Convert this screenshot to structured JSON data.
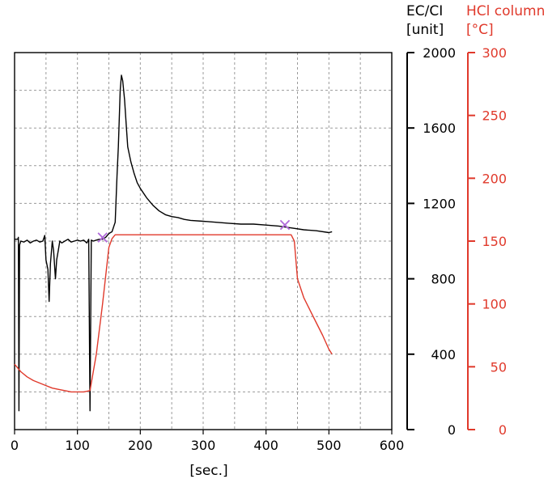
{
  "chart_data": {
    "type": "line",
    "xlabel": "[sec.]",
    "xlim": [
      0,
      600
    ],
    "x_ticks": [
      "0",
      "100",
      "200",
      "300",
      "400",
      "500",
      "600"
    ],
    "y_left": {
      "label_line1": "EC/CI",
      "label_line2": "[unit]",
      "lim": [
        0,
        2000
      ],
      "ticks": [
        "0",
        "400",
        "800",
        "1200",
        "1600",
        "2000"
      ],
      "color": "#000000"
    },
    "y_right": {
      "label_line1": "HCl column",
      "label_line2": "[°C]",
      "lim": [
        0,
        300
      ],
      "ticks": [
        "0",
        "50",
        "100",
        "150",
        "200",
        "250",
        "300"
      ],
      "color": "#e0392b"
    },
    "grid": true,
    "series": [
      {
        "axis": "left",
        "color": "#000000",
        "points": [
          [
            0,
            1010
          ],
          [
            5,
            1010
          ],
          [
            6,
            1020
          ],
          [
            7,
            100
          ],
          [
            8,
            980
          ],
          [
            10,
            1000
          ],
          [
            15,
            995
          ],
          [
            20,
            1005
          ],
          [
            25,
            990
          ],
          [
            30,
            1000
          ],
          [
            35,
            1005
          ],
          [
            40,
            995
          ],
          [
            45,
            1000
          ],
          [
            48,
            1030
          ],
          [
            50,
            900
          ],
          [
            53,
            850
          ],
          [
            55,
            680
          ],
          [
            57,
            880
          ],
          [
            60,
            1000
          ],
          [
            62,
            950
          ],
          [
            65,
            800
          ],
          [
            67,
            900
          ],
          [
            70,
            960
          ],
          [
            72,
            1000
          ],
          [
            75,
            990
          ],
          [
            80,
            1000
          ],
          [
            85,
            1010
          ],
          [
            90,
            995
          ],
          [
            95,
            1000
          ],
          [
            100,
            1005
          ],
          [
            105,
            1000
          ],
          [
            110,
            1005
          ],
          [
            115,
            990
          ],
          [
            118,
            1010
          ],
          [
            120,
            100
          ],
          [
            122,
            1005
          ],
          [
            125,
            1000
          ],
          [
            130,
            1005
          ],
          [
            135,
            1010
          ],
          [
            140,
            1010
          ],
          [
            145,
            1020
          ],
          [
            150,
            1040
          ],
          [
            155,
            1050
          ],
          [
            160,
            1100
          ],
          [
            163,
            1350
          ],
          [
            165,
            1500
          ],
          [
            168,
            1800
          ],
          [
            170,
            1880
          ],
          [
            172,
            1850
          ],
          [
            175,
            1750
          ],
          [
            178,
            1600
          ],
          [
            180,
            1500
          ],
          [
            185,
            1420
          ],
          [
            190,
            1360
          ],
          [
            195,
            1310
          ],
          [
            200,
            1280
          ],
          [
            210,
            1230
          ],
          [
            220,
            1190
          ],
          [
            230,
            1160
          ],
          [
            240,
            1140
          ],
          [
            250,
            1130
          ],
          [
            260,
            1125
          ],
          [
            270,
            1115
          ],
          [
            280,
            1110
          ],
          [
            300,
            1105
          ],
          [
            320,
            1100
          ],
          [
            340,
            1095
          ],
          [
            360,
            1090
          ],
          [
            380,
            1090
          ],
          [
            400,
            1085
          ],
          [
            420,
            1080
          ],
          [
            440,
            1070
          ],
          [
            460,
            1060
          ],
          [
            480,
            1055
          ],
          [
            500,
            1045
          ],
          [
            505,
            1050
          ]
        ]
      },
      {
        "axis": "right",
        "color": "#e0392b",
        "points": [
          [
            0,
            52
          ],
          [
            10,
            46
          ],
          [
            20,
            42
          ],
          [
            30,
            39
          ],
          [
            40,
            37
          ],
          [
            50,
            35
          ],
          [
            60,
            33
          ],
          [
            70,
            32
          ],
          [
            80,
            31
          ],
          [
            90,
            30
          ],
          [
            100,
            30
          ],
          [
            110,
            30
          ],
          [
            120,
            31
          ],
          [
            130,
            60
          ],
          [
            140,
            100
          ],
          [
            150,
            145
          ],
          [
            155,
            152
          ],
          [
            160,
            155
          ],
          [
            180,
            155
          ],
          [
            200,
            155
          ],
          [
            250,
            155
          ],
          [
            300,
            155
          ],
          [
            350,
            155
          ],
          [
            400,
            155
          ],
          [
            430,
            155
          ],
          [
            440,
            155
          ],
          [
            445,
            150
          ],
          [
            450,
            120
          ],
          [
            460,
            105
          ],
          [
            470,
            95
          ],
          [
            480,
            85
          ],
          [
            490,
            75
          ],
          [
            500,
            64
          ],
          [
            505,
            60
          ]
        ]
      }
    ],
    "markers": [
      {
        "x": 140,
        "axis": "left",
        "y": 1020,
        "symbol": "×",
        "color": "#b06ad9"
      },
      {
        "x": 430,
        "axis": "left",
        "y": 1085,
        "symbol": "×",
        "color": "#b06ad9"
      }
    ]
  }
}
